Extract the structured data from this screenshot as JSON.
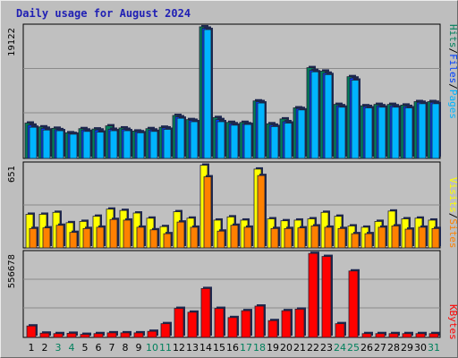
{
  "title": "Daily usage for August 2024",
  "colors": {
    "pages": "#00b4ff",
    "files": "#0040ff",
    "hits": "#00805c",
    "sites": "#ff8000",
    "visits": "#ffff00",
    "kbytes": "#ff0000",
    "weekend": "#00805c",
    "weekday": "#000000"
  },
  "chart_data": [
    {
      "type": "bar",
      "name": "pages-files-hits",
      "ymax_label": "19122",
      "ylim": [
        0,
        19122
      ],
      "categories": [
        "1",
        "2",
        "3",
        "4",
        "5",
        "6",
        "7",
        "8",
        "9",
        "10",
        "11",
        "12",
        "13",
        "14",
        "15",
        "16",
        "17",
        "18",
        "19",
        "20",
        "21",
        "22",
        "23",
        "24",
        "25",
        "26",
        "27",
        "28",
        "29",
        "30",
        "31"
      ],
      "weekend_days": [
        "3",
        "4",
        "10",
        "11",
        "17",
        "18",
        "24",
        "25",
        "31"
      ],
      "legend": [
        "Pages",
        "Files",
        "Hits"
      ],
      "series": [
        {
          "name": "Hits",
          "values": [
            5100,
            4550,
            4350,
            3700,
            4300,
            4250,
            4700,
            4400,
            3950,
            4300,
            4500,
            6200,
            5600,
            19000,
            5900,
            5200,
            5200,
            8300,
            5000,
            5700,
            7300,
            13100,
            12600,
            7800,
            11800,
            7600,
            7800,
            7800,
            7700,
            8200,
            8200
          ]
        },
        {
          "name": "Files",
          "values": [
            4800,
            4350,
            4150,
            3600,
            4100,
            4100,
            4200,
            4200,
            3850,
            4100,
            4400,
            6000,
            5500,
            18800,
            5600,
            5000,
            5000,
            8200,
            4800,
            5300,
            7200,
            12700,
            12300,
            7600,
            11600,
            7500,
            7600,
            7600,
            7500,
            8100,
            8100
          ]
        },
        {
          "name": "Pages",
          "values": [
            4500,
            4100,
            4000,
            3500,
            3900,
            3800,
            4000,
            4000,
            3700,
            3900,
            4200,
            5800,
            5300,
            18600,
            5300,
            4800,
            4900,
            8000,
            4600,
            5100,
            7000,
            12500,
            12100,
            7400,
            11300,
            7300,
            7400,
            7400,
            7300,
            7900,
            7900
          ]
        }
      ]
    },
    {
      "type": "bar",
      "name": "visits-sites",
      "ymax_label": "651",
      "ylim": [
        0,
        651
      ],
      "categories": [
        "1",
        "2",
        "3",
        "4",
        "5",
        "6",
        "7",
        "8",
        "9",
        "10",
        "11",
        "12",
        "13",
        "14",
        "15",
        "16",
        "17",
        "18",
        "19",
        "20",
        "21",
        "22",
        "23",
        "24",
        "25",
        "26",
        "27",
        "28",
        "29",
        "30",
        "31"
      ],
      "legend": [
        "Sites",
        "Visits"
      ],
      "series": [
        {
          "name": "Visits",
          "values": [
            260,
            260,
            275,
            195,
            205,
            245,
            300,
            290,
            270,
            230,
            165,
            280,
            230,
            640,
            215,
            240,
            215,
            610,
            225,
            210,
            215,
            225,
            275,
            245,
            170,
            160,
            205,
            285,
            225,
            230,
            215
          ]
        },
        {
          "name": "Sites",
          "values": [
            150,
            155,
            175,
            120,
            150,
            160,
            220,
            215,
            160,
            140,
            110,
            200,
            160,
            550,
            130,
            175,
            160,
            560,
            150,
            150,
            155,
            170,
            160,
            150,
            110,
            110,
            160,
            170,
            145,
            160,
            150
          ]
        }
      ]
    },
    {
      "type": "bar",
      "name": "kbytes",
      "ymax_label": "556678",
      "ylim": [
        0,
        556678
      ],
      "categories": [
        "1",
        "2",
        "3",
        "4",
        "5",
        "6",
        "7",
        "8",
        "9",
        "10",
        "11",
        "12",
        "13",
        "14",
        "15",
        "16",
        "17",
        "18",
        "19",
        "20",
        "21",
        "22",
        "23",
        "24",
        "25",
        "26",
        "27",
        "28",
        "29",
        "30",
        "31"
      ],
      "legend": [
        "KBytes"
      ],
      "series": [
        {
          "name": "KBytes",
          "values": [
            75000,
            28000,
            25000,
            27000,
            20000,
            25000,
            30000,
            30000,
            30000,
            40000,
            90000,
            190000,
            165000,
            320000,
            190000,
            130000,
            175000,
            205000,
            110000,
            175000,
            185000,
            550000,
            530000,
            90000,
            435000,
            25000,
            25000,
            25000,
            25000,
            25000,
            25000
          ]
        }
      ]
    }
  ]
}
